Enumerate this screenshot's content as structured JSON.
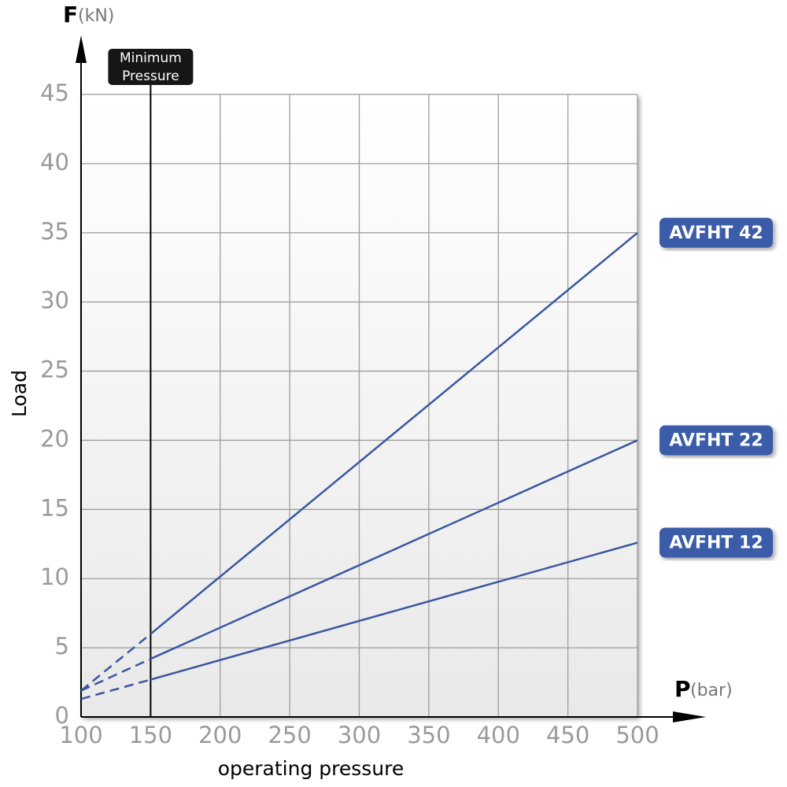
{
  "chart_data": {
    "type": "line",
    "x_axis": {
      "symbol": "P",
      "unit": "(bar)",
      "label": "operating pressure"
    },
    "y_axis": {
      "symbol": "F",
      "unit": "(kN)",
      "label": "Load"
    },
    "xlim": [
      100,
      500
    ],
    "xticks": [
      100,
      150,
      200,
      250,
      300,
      350,
      400,
      450,
      500
    ],
    "ylim": [
      0,
      45
    ],
    "yticks": [
      0,
      5,
      10,
      15,
      20,
      25,
      30,
      35,
      40,
      45
    ],
    "grid": true,
    "annotation": {
      "text": [
        "Minimum",
        "Pressure"
      ],
      "x": 150
    },
    "series": [
      {
        "name": "AVFHT 42",
        "color": "#3a57a0",
        "x": [
          100,
          150,
          500
        ],
        "values": [
          1.9,
          6.0,
          35
        ]
      },
      {
        "name": "AVFHT 22",
        "color": "#3a57a0",
        "x": [
          100,
          150,
          500
        ],
        "values": [
          1.9,
          4.2,
          20
        ]
      },
      {
        "name": "AVFHT 12",
        "color": "#3a57a0",
        "x": [
          100,
          150,
          500
        ],
        "values": [
          1.3,
          2.7,
          12.6
        ]
      }
    ]
  }
}
